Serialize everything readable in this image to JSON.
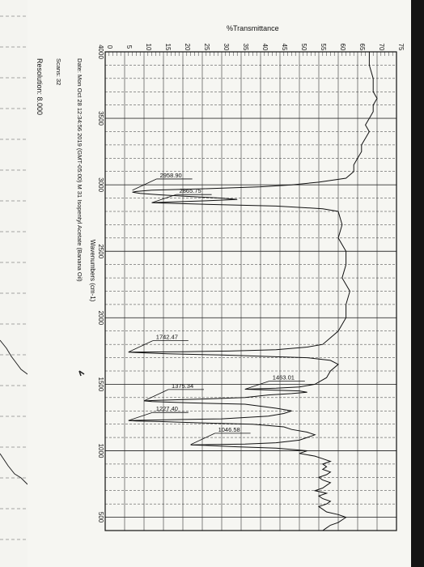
{
  "chart_data": {
    "type": "line",
    "ylabel": "%Transmittance",
    "xlabel": "Wavenumbers (cm-1)",
    "ylim": [
      0,
      75
    ],
    "xlim": [
      4000,
      400
    ],
    "y_ticks": [
      "75",
      "70",
      "65",
      "60",
      "55",
      "50",
      "45",
      "40",
      "35",
      "30",
      "25",
      "20",
      "15",
      "10",
      "5",
      "0"
    ],
    "x_ticks": [
      "4000",
      "3500",
      "3000",
      "2500",
      "2000",
      "1500",
      "1000",
      "500"
    ],
    "grid": true,
    "series": [
      {
        "x": [
          4000,
          3900,
          3800,
          3700,
          3650,
          3600,
          3550,
          3500,
          3450,
          3400,
          3350,
          3300,
          3250,
          3200,
          3150,
          3100,
          3050,
          3020,
          3000,
          2985,
          2970,
          2960,
          2950,
          2945,
          2935,
          2925,
          2915,
          2900,
          2890,
          2880,
          2870,
          2866,
          2860,
          2850,
          2840,
          2820,
          2800,
          2700,
          2600,
          2500,
          2400,
          2300,
          2200,
          2100,
          2000,
          1950,
          1900,
          1850,
          1800,
          1780,
          1760,
          1750,
          1745,
          1742,
          1738,
          1730,
          1720,
          1700,
          1680,
          1650,
          1600,
          1550,
          1500,
          1480,
          1470,
          1463,
          1455,
          1450,
          1440,
          1430,
          1420,
          1400,
          1390,
          1380,
          1375,
          1370,
          1360,
          1350,
          1320,
          1300,
          1280,
          1260,
          1240,
          1235,
          1230,
          1227,
          1224,
          1220,
          1210,
          1200,
          1180,
          1160,
          1140,
          1120,
          1100,
          1080,
          1060,
          1050,
          1047,
          1044,
          1040,
          1030,
          1020,
          1000,
          980,
          960,
          940,
          920,
          900,
          880,
          860,
          840,
          820,
          800,
          780,
          760,
          740,
          720,
          700,
          680,
          660,
          640,
          620,
          600,
          580,
          560,
          540,
          520,
          500,
          480,
          460,
          440,
          420,
          400
        ],
        "y": [
          68,
          68,
          69,
          69,
          70,
          69,
          69,
          68,
          67,
          68,
          67,
          66,
          66,
          65,
          64,
          64,
          62,
          55,
          48,
          40,
          25,
          12,
          8,
          7,
          9,
          14,
          20,
          30,
          34,
          26,
          16,
          12,
          18,
          30,
          44,
          56,
          60,
          61,
          60,
          62,
          62,
          61,
          63,
          62,
          62,
          61,
          60,
          58,
          56,
          52,
          44,
          32,
          20,
          6,
          8,
          16,
          30,
          52,
          58,
          60,
          58,
          57,
          54,
          50,
          44,
          36,
          44,
          50,
          52,
          48,
          42,
          36,
          26,
          14,
          10,
          12,
          22,
          36,
          44,
          48,
          46,
          42,
          30,
          20,
          10,
          6,
          8,
          14,
          24,
          38,
          46,
          48,
          52,
          54,
          52,
          50,
          44,
          36,
          28,
          22,
          26,
          34,
          44,
          52,
          50,
          54,
          56,
          58,
          56,
          57,
          56,
          58,
          57,
          55,
          56,
          58,
          57,
          56,
          54,
          57,
          55,
          56,
          58,
          57,
          55,
          56,
          57,
          60,
          62,
          61,
          60,
          58,
          57,
          56
        ],
        "annotations": [
          {
            "x": 2958.9,
            "y": 7,
            "label": "2958.90"
          },
          {
            "x": 2865.75,
            "y": 12,
            "label": "2865.75"
          },
          {
            "x": 1742.47,
            "y": 6,
            "label": "1742.47"
          },
          {
            "x": 1463.01,
            "y": 36,
            "label": "1463.01"
          },
          {
            "x": 1375.34,
            "y": 10,
            "label": "1375.34"
          },
          {
            "x": 1227.4,
            "y": 6,
            "label": "1227.40"
          },
          {
            "x": 1046.58,
            "y": 22,
            "label": "1046.58"
          }
        ]
      }
    ]
  },
  "info": {
    "date_line": "Date: Mon Oct 28 12:34:56 2019 (GMT-05:00) M 31 Isopentyl Acetate (Banana Oil)",
    "scans_line": "Scans: 32",
    "resolution_line": "Resolution: 8.000"
  },
  "colors": {
    "paper": "#f6f6f2",
    "grid": "#333333",
    "trace": "#111111"
  }
}
